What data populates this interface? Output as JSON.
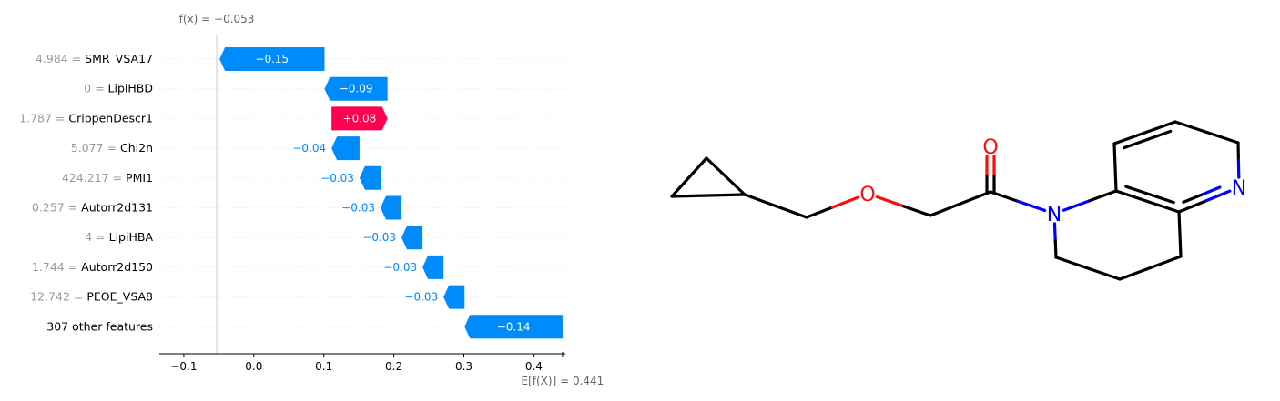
{
  "colors": {
    "negative": "#008bfb",
    "positive": "#ff0051",
    "feature_value": "#999999",
    "label": "#000000",
    "axis": "#000000",
    "gridline": "#eeeeee",
    "bond": "#000000",
    "oxygen": "#ff0d0d",
    "nitrogen": "#0000ff"
  },
  "chart_data": {
    "type": "waterfall",
    "base_value": 0.441,
    "output_value": -0.053,
    "fx_label": "f(x) = −0.053",
    "ex_label": "E[f(X)] = 0.441",
    "xlim": [
      -0.135,
      0.445
    ],
    "xticks": [
      -0.1,
      0.0,
      0.1,
      0.2,
      0.3,
      0.4
    ],
    "xtick_labels": [
      "−0.1",
      "0.0",
      "0.1",
      "0.2",
      "0.3",
      "0.4"
    ],
    "rows": [
      {
        "feature_value": "4.984",
        "feature": "SMR_VSA17",
        "shap": -0.15,
        "label": "−0.15"
      },
      {
        "feature_value": "0",
        "feature": "LipiHBD",
        "shap": -0.09,
        "label": "−0.09"
      },
      {
        "feature_value": "1.787",
        "feature": "CrippenDescr1",
        "shap": 0.08,
        "label": "+0.08"
      },
      {
        "feature_value": "5.077",
        "feature": "Chi2n",
        "shap": -0.04,
        "label": "−0.04"
      },
      {
        "feature_value": "424.217",
        "feature": "PMI1",
        "shap": -0.03,
        "label": "−0.03"
      },
      {
        "feature_value": "0.257",
        "feature": "Autorr2d131",
        "shap": -0.03,
        "label": "−0.03"
      },
      {
        "feature_value": "4",
        "feature": "LipiHBA",
        "shap": -0.03,
        "label": "−0.03"
      },
      {
        "feature_value": "1.744",
        "feature": "Autorr2d150",
        "shap": -0.03,
        "label": "−0.03"
      },
      {
        "feature_value": "12.742",
        "feature": "PEOE_VSA8",
        "shap": -0.03,
        "label": "−0.03"
      },
      {
        "feature_value": "",
        "feature": "307 other features",
        "shap": -0.14,
        "label": "−0.14"
      }
    ]
  },
  "molecule": {
    "atoms": [
      {
        "id": "cp1",
        "el": "C"
      },
      {
        "id": "cp2",
        "el": "C"
      },
      {
        "id": "cp3",
        "el": "C"
      },
      {
        "id": "ch2a",
        "el": "C"
      },
      {
        "id": "o1",
        "el": "O",
        "label": "O"
      },
      {
        "id": "ch2b",
        "el": "C"
      },
      {
        "id": "co",
        "el": "C"
      },
      {
        "id": "o2",
        "el": "O",
        "label": "O"
      },
      {
        "id": "n1",
        "el": "N",
        "label": "N"
      },
      {
        "id": "c8a",
        "el": "C"
      },
      {
        "id": "c8",
        "el": "C"
      },
      {
        "id": "c7",
        "el": "C"
      },
      {
        "id": "c6",
        "el": "C"
      },
      {
        "id": "n5",
        "el": "N",
        "label": "N"
      },
      {
        "id": "c4a",
        "el": "C"
      },
      {
        "id": "c4",
        "el": "C"
      },
      {
        "id": "c3",
        "el": "C"
      },
      {
        "id": "c2",
        "el": "C"
      }
    ],
    "bonds": [
      [
        "cp1",
        "cp2",
        1
      ],
      [
        "cp2",
        "cp3",
        1
      ],
      [
        "cp3",
        "cp1",
        1
      ],
      [
        "cp3",
        "ch2a",
        1
      ],
      [
        "ch2a",
        "o1",
        1
      ],
      [
        "o1",
        "ch2b",
        1
      ],
      [
        "ch2b",
        "co",
        1
      ],
      [
        "co",
        "o2",
        2
      ],
      [
        "co",
        "n1",
        1
      ],
      [
        "n1",
        "c8a",
        1
      ],
      [
        "n1",
        "c2",
        1
      ],
      [
        "c8a",
        "c8",
        1
      ],
      [
        "c8",
        "c7",
        2
      ],
      [
        "c7",
        "c6",
        1
      ],
      [
        "c6",
        "n5",
        1
      ],
      [
        "n5",
        "c4a",
        2
      ],
      [
        "c4a",
        "c8a",
        2
      ],
      [
        "c4a",
        "c4",
        1
      ],
      [
        "c4",
        "c3",
        1
      ],
      [
        "c3",
        "c2",
        1
      ]
    ]
  }
}
